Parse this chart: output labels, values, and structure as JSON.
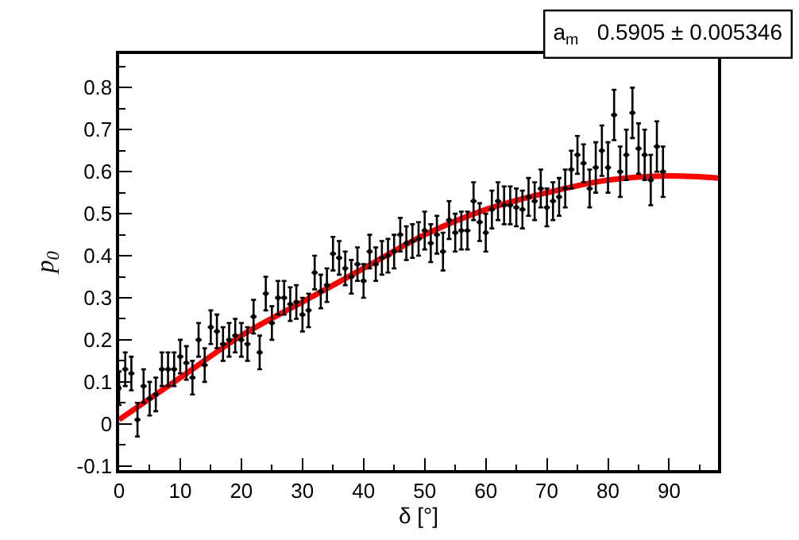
{
  "chart_data": {
    "type": "scatter",
    "xlabel": "δ [°]",
    "ylabel": "p$_{0}$",
    "xlim": [
      0,
      98
    ],
    "ylim": [
      -0.11,
      0.88
    ],
    "xticks": [
      0,
      10,
      20,
      30,
      40,
      50,
      60,
      70,
      80,
      90
    ],
    "yticks": [
      -0.1,
      0,
      0.1,
      0.2,
      0.3,
      0.4,
      0.5,
      0.6,
      0.7,
      0.8
    ],
    "annotations": [
      "a$_{m}$   0.5905 ± 0.005346"
    ],
    "series": [
      {
        "color": "#000000",
        "marker": "circle",
        "x": [
          0,
          1,
          2,
          3,
          4,
          5,
          6,
          7,
          8,
          9,
          10,
          11,
          12,
          13,
          14,
          15,
          16,
          17,
          18,
          19,
          20,
          21,
          22,
          23,
          24,
          25,
          26,
          27,
          28,
          29,
          30,
          31,
          32,
          33,
          34,
          35,
          36,
          37,
          38,
          39,
          40,
          41,
          42,
          43,
          44,
          45,
          46,
          47,
          48,
          49,
          50,
          51,
          52,
          53,
          54,
          55,
          56,
          57,
          58,
          59,
          60,
          61,
          62,
          63,
          64,
          65,
          66,
          67,
          68,
          69,
          70,
          71,
          72,
          73,
          74,
          75,
          76,
          77,
          78,
          79,
          80,
          81,
          82,
          83,
          84,
          85,
          86,
          87,
          88,
          89
        ],
        "values": [
          0.085,
          0.13,
          0.12,
          0.01,
          0.09,
          0.06,
          0.07,
          0.13,
          0.13,
          0.13,
          0.16,
          0.145,
          0.11,
          0.2,
          0.14,
          0.23,
          0.22,
          0.19,
          0.2,
          0.21,
          0.2,
          0.19,
          0.255,
          0.17,
          0.31,
          0.24,
          0.3,
          0.3,
          0.285,
          0.29,
          0.26,
          0.27,
          0.36,
          0.315,
          0.33,
          0.405,
          0.395,
          0.37,
          0.35,
          0.38,
          0.34,
          0.41,
          0.38,
          0.395,
          0.4,
          0.41,
          0.45,
          0.43,
          0.435,
          0.44,
          0.46,
          0.43,
          0.45,
          0.41,
          0.485,
          0.455,
          0.46,
          0.46,
          0.53,
          0.48,
          0.455,
          0.51,
          0.53,
          0.52,
          0.52,
          0.515,
          0.51,
          0.54,
          0.53,
          0.56,
          0.515,
          0.53,
          0.54,
          0.56,
          0.605,
          0.64,
          0.62,
          0.56,
          0.61,
          0.65,
          0.61,
          0.735,
          0.6,
          0.64,
          0.74,
          0.655,
          0.64,
          0.58,
          0.66,
          0.6
        ],
        "errors": [
          0.04,
          0.04,
          0.04,
          0.04,
          0.04,
          0.04,
          0.04,
          0.04,
          0.04,
          0.04,
          0.04,
          0.04,
          0.04,
          0.04,
          0.04,
          0.04,
          0.04,
          0.04,
          0.04,
          0.04,
          0.04,
          0.04,
          0.04,
          0.04,
          0.04,
          0.04,
          0.04,
          0.04,
          0.04,
          0.04,
          0.04,
          0.04,
          0.04,
          0.04,
          0.04,
          0.04,
          0.04,
          0.04,
          0.04,
          0.04,
          0.04,
          0.04,
          0.04,
          0.04,
          0.04,
          0.04,
          0.04,
          0.04,
          0.04,
          0.04,
          0.045,
          0.045,
          0.045,
          0.045,
          0.045,
          0.045,
          0.045,
          0.045,
          0.045,
          0.045,
          0.045,
          0.045,
          0.045,
          0.045,
          0.045,
          0.045,
          0.045,
          0.045,
          0.045,
          0.045,
          0.045,
          0.045,
          0.045,
          0.045,
          0.045,
          0.045,
          0.045,
          0.045,
          0.06,
          0.06,
          0.06,
          0.06,
          0.06,
          0.06,
          0.06,
          0.06,
          0.06,
          0.06,
          0.06,
          0.06
        ],
        "xerrors": [
          null,
          0.5,
          0.5,
          0.5,
          0.5,
          0.5,
          0.5,
          0.5,
          0.5,
          0.5,
          0.5,
          0.5,
          0.5,
          0.5,
          0.5,
          0.5,
          0.5,
          0.5,
          0.5,
          0.5,
          0.5,
          0.5,
          0.5,
          0.5,
          0.5,
          0.5,
          0.5,
          0.5,
          0.5,
          0.5,
          0.5,
          0.5,
          0.5,
          0.5,
          0.5,
          0.5,
          0.5,
          0.5,
          0.5,
          0.5,
          0.5,
          0.5,
          0.5,
          0.5,
          0.5,
          0.5,
          0.5,
          0.5,
          0.5,
          0.5,
          0.5,
          0.5,
          0.5,
          0.5,
          0.5,
          0.5,
          0.5,
          0.5,
          0.5,
          0.5,
          0.5,
          0.5,
          0.5,
          0.5,
          0.5,
          0.5,
          0.5,
          0.5,
          0.5,
          0.5,
          0.5,
          0.5,
          0.5,
          0.5,
          0.5,
          0.5,
          0.5,
          0.5,
          0.5,
          0.5,
          0.5,
          0.5,
          0.5,
          0.5,
          0.5,
          0.5,
          0.5,
          0.5,
          0.5,
          0.5
        ]
      },
      {
        "type": "line",
        "color": "#ff0000",
        "x": [
          0,
          10,
          20,
          30,
          40,
          50,
          60,
          70,
          80,
          90,
          98
        ],
        "values": [
          0.01,
          0.11,
          0.21,
          0.29,
          0.37,
          0.45,
          0.51,
          0.55,
          0.58,
          0.59,
          0.585
        ]
      }
    ]
  }
}
